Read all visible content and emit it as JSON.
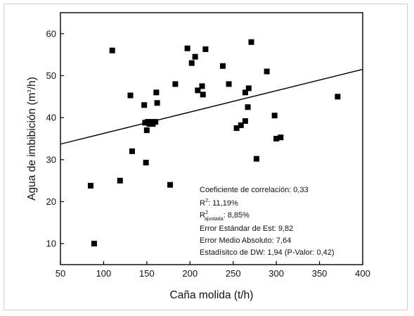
{
  "chart_data": {
    "type": "scatter",
    "xlabel": "Caña molida (t/h)",
    "ylabel": "Agua de imbibición (m³/h)",
    "ylabel_parts": {
      "base": "Agua de imbibición (m",
      "sup": "3",
      "end": "/h)"
    },
    "xlim": [
      50,
      400
    ],
    "ylim": [
      5,
      65
    ],
    "xticks": [
      50,
      100,
      150,
      200,
      250,
      300,
      350,
      400
    ],
    "yticks": [
      10,
      20,
      30,
      40,
      50,
      60
    ],
    "points": [
      {
        "x": 85,
        "y": 23.8
      },
      {
        "x": 89,
        "y": 10
      },
      {
        "x": 110,
        "y": 56
      },
      {
        "x": 119,
        "y": 25
      },
      {
        "x": 131,
        "y": 45.3
      },
      {
        "x": 133,
        "y": 32
      },
      {
        "x": 147,
        "y": 43
      },
      {
        "x": 148,
        "y": 38.8
      },
      {
        "x": 149,
        "y": 29.3
      },
      {
        "x": 150,
        "y": 37
      },
      {
        "x": 151,
        "y": 39
      },
      {
        "x": 153,
        "y": 38.5
      },
      {
        "x": 155,
        "y": 39
      },
      {
        "x": 157,
        "y": 38.5
      },
      {
        "x": 160,
        "y": 39
      },
      {
        "x": 161,
        "y": 46
      },
      {
        "x": 162,
        "y": 43.5
      },
      {
        "x": 177,
        "y": 24
      },
      {
        "x": 183,
        "y": 48
      },
      {
        "x": 197,
        "y": 56.5
      },
      {
        "x": 202,
        "y": 53
      },
      {
        "x": 206,
        "y": 54.5
      },
      {
        "x": 209,
        "y": 46.5
      },
      {
        "x": 214,
        "y": 47.5
      },
      {
        "x": 215,
        "y": 45.5
      },
      {
        "x": 218,
        "y": 56.3
      },
      {
        "x": 238,
        "y": 52.3
      },
      {
        "x": 245,
        "y": 48
      },
      {
        "x": 254,
        "y": 37.5
      },
      {
        "x": 259,
        "y": 38.2
      },
      {
        "x": 264,
        "y": 39.2
      },
      {
        "x": 264,
        "y": 46
      },
      {
        "x": 267,
        "y": 42.5
      },
      {
        "x": 268,
        "y": 47
      },
      {
        "x": 271,
        "y": 58
      },
      {
        "x": 277,
        "y": 30.2
      },
      {
        "x": 289,
        "y": 51
      },
      {
        "x": 298,
        "y": 40.5
      },
      {
        "x": 300,
        "y": 35
      },
      {
        "x": 305,
        "y": 35.3
      },
      {
        "x": 371,
        "y": 45
      }
    ],
    "trendline": {
      "x": [
        50,
        400
      ],
      "y": [
        33.7,
        51.5
      ]
    },
    "marker_color": "#000000",
    "line_color": "#000000",
    "grid": false,
    "legend": "none",
    "annotations": {
      "corr": "Coeficiente de correlación: 0,33",
      "r2_label": "R",
      "r2_sup": "2",
      "r2_rest": ": 11,19%",
      "r2adj_label": "R",
      "r2adj_sup": "2",
      "r2adj_sub": "ajustada",
      "r2adj_rest": ": 8,85%",
      "std_err": "Error Estándar de Est: 9,82",
      "mae": "Error Medio Absoluto: 7,64",
      "dw": "Estadísitco de DW: 1,94 (P-Valor: 0,42)"
    }
  }
}
